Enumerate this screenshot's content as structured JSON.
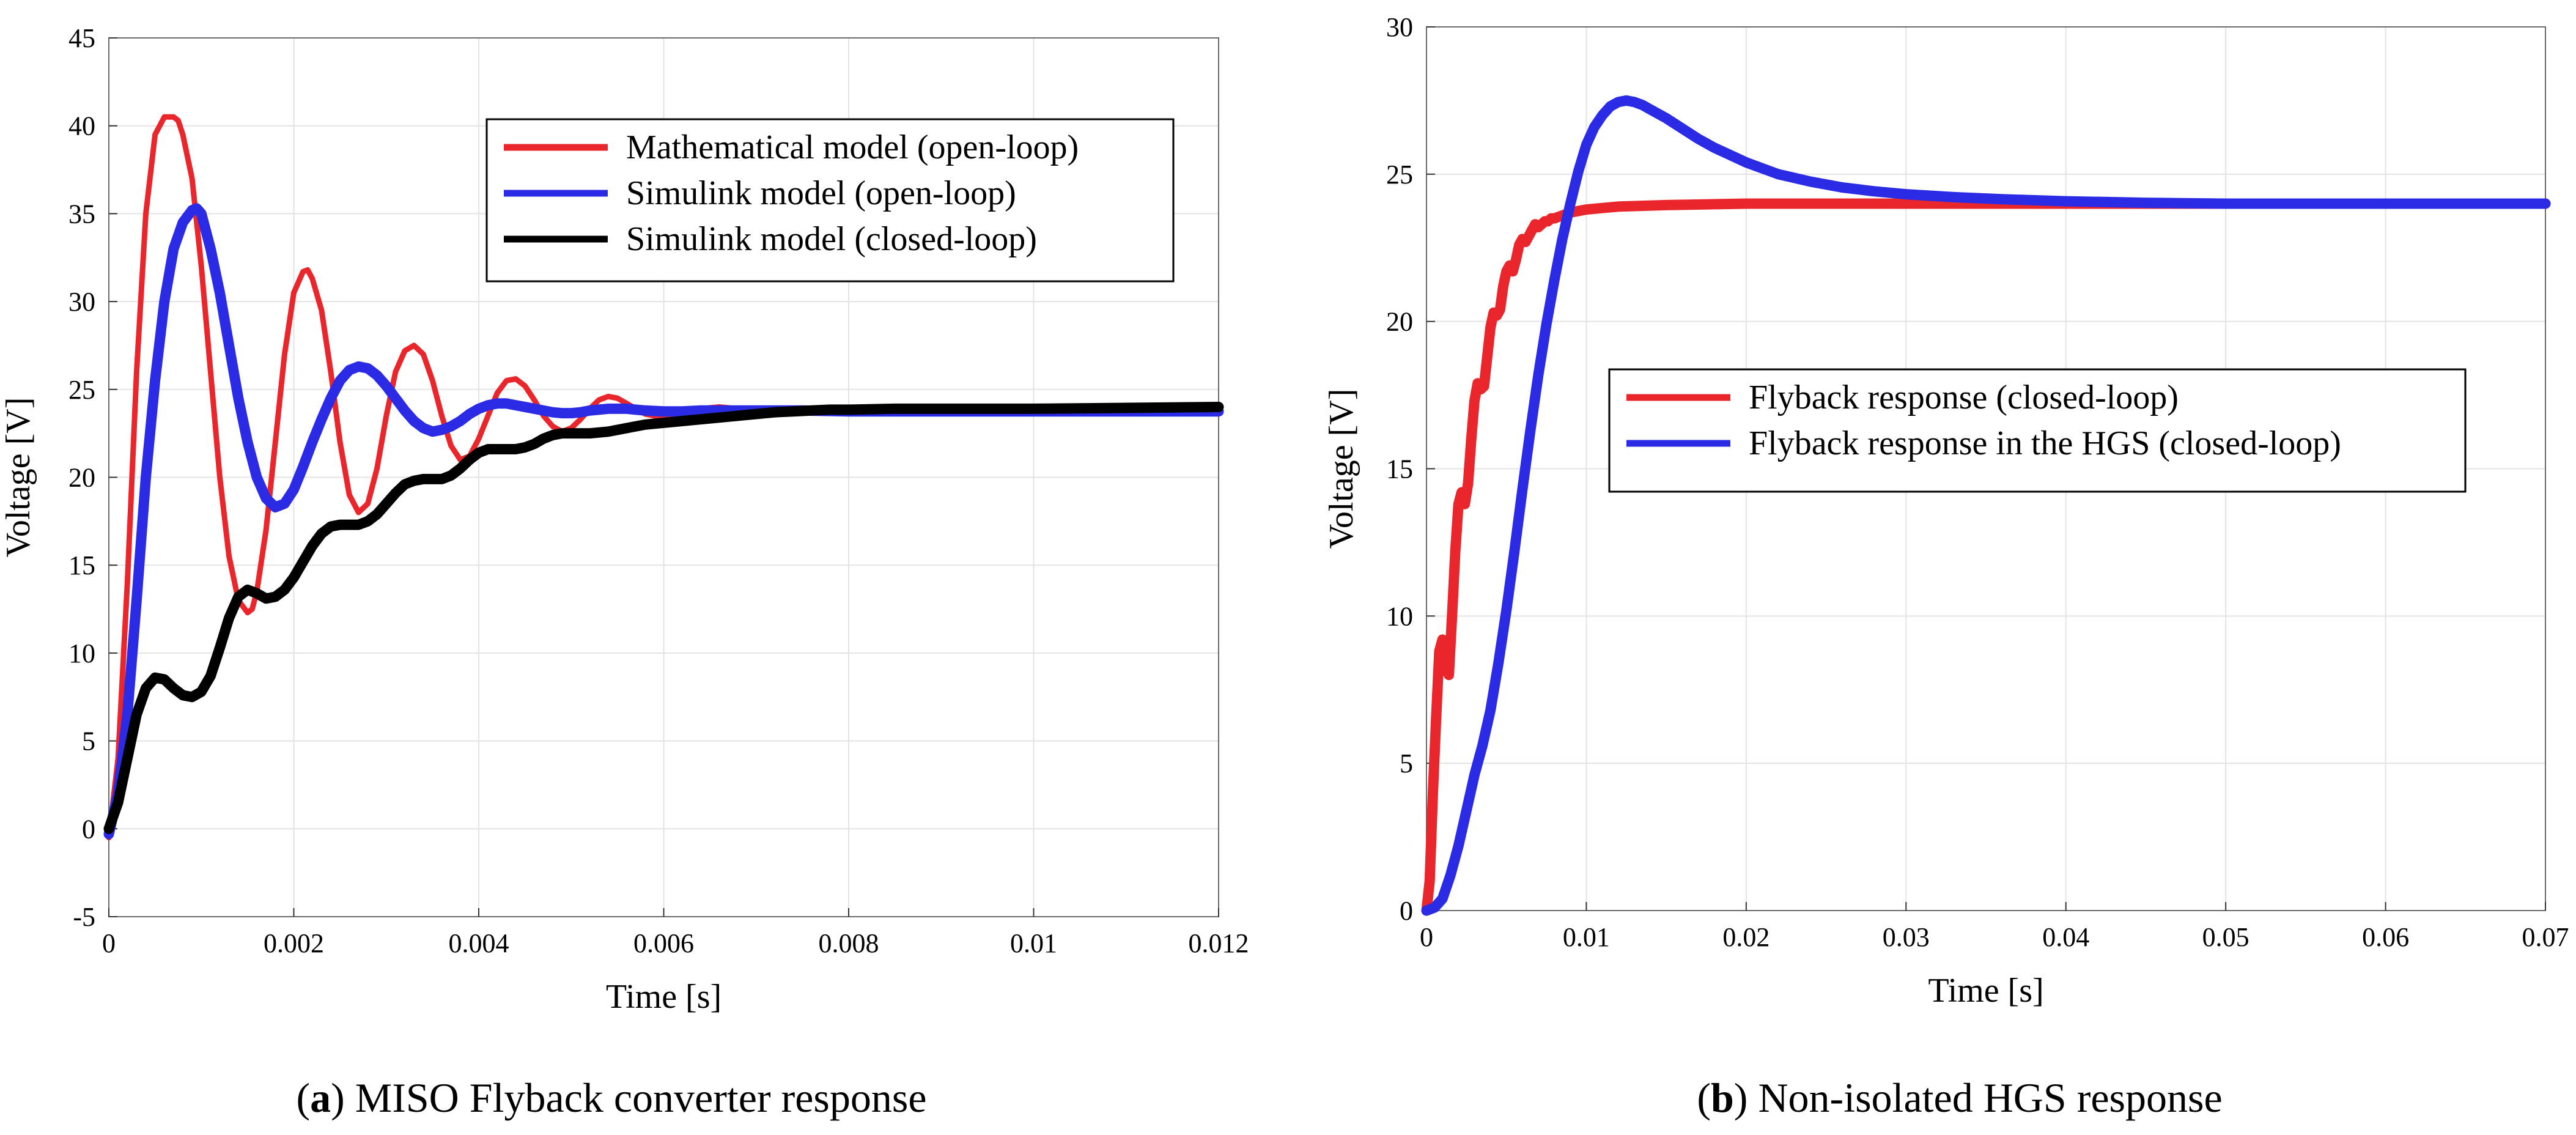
{
  "chart_data": [
    {
      "id": "a",
      "type": "line",
      "caption_prefix": "(",
      "caption_letter": "a",
      "caption_rest": ") MISO Flyback converter response",
      "xlabel": "Time [s]",
      "ylabel": "Voltage [V]",
      "xlim": [
        0,
        0.012
      ],
      "ylim": [
        -5,
        45
      ],
      "xticks": [
        0,
        0.002,
        0.004,
        0.006,
        0.008,
        0.01,
        0.012
      ],
      "xtick_labels": [
        "0",
        "0.002",
        "0.004",
        "0.006",
        "0.008",
        "0.01",
        "0.012"
      ],
      "yticks": [
        -5,
        0,
        5,
        10,
        15,
        20,
        25,
        30,
        35,
        40,
        45
      ],
      "ytick_labels": [
        "-5",
        "0",
        "5",
        "10",
        "15",
        "20",
        "25",
        "30",
        "35",
        "40",
        "45"
      ],
      "grid": true,
      "legend_position": "top-right",
      "series": [
        {
          "name": "Mathematical model (open-loop)",
          "color": "#e8262b",
          "weight": "normal",
          "x": [
            0,
            0.0001,
            0.0002,
            0.0003,
            0.0004,
            0.0005,
            0.0006,
            0.0007,
            0.00075,
            0.0008,
            0.0009,
            0.001,
            0.0011,
            0.0012,
            0.0013,
            0.0014,
            0.0015,
            0.00155,
            0.0016,
            0.0017,
            0.0018,
            0.0019,
            0.002,
            0.0021,
            0.00215,
            0.0022,
            0.0023,
            0.0024,
            0.0025,
            0.0026,
            0.0027,
            0.0028,
            0.0029,
            0.003,
            0.0031,
            0.0032,
            0.0033,
            0.0034,
            0.0035,
            0.0036,
            0.0037,
            0.0038,
            0.0039,
            0.004,
            0.0041,
            0.0042,
            0.0043,
            0.0044,
            0.0045,
            0.0046,
            0.0047,
            0.0048,
            0.0049,
            0.005,
            0.0051,
            0.0052,
            0.0053,
            0.0054,
            0.0055,
            0.0056,
            0.0057,
            0.0058,
            0.0059,
            0.006,
            0.0062,
            0.0064,
            0.0066,
            0.0068,
            0.007,
            0.0072,
            0.0074,
            0.0076,
            0.0078,
            0.008,
            0.0085,
            0.009,
            0.01,
            0.011,
            0.012
          ],
          "y": [
            -0.5,
            4,
            14,
            26,
            35,
            39.5,
            40.5,
            40.5,
            40.3,
            39.5,
            37,
            32,
            26,
            20,
            15.5,
            13,
            12.3,
            12.5,
            13.5,
            17,
            22,
            27,
            30.5,
            31.7,
            31.8,
            31.3,
            29.5,
            26,
            22,
            19,
            18,
            18.5,
            20.5,
            23.5,
            26,
            27.2,
            27.5,
            27,
            25.5,
            23.5,
            21.8,
            21,
            21.2,
            22.2,
            23.5,
            24.8,
            25.5,
            25.6,
            25.2,
            24.4,
            23.5,
            22.9,
            22.6,
            22.8,
            23.3,
            23.9,
            24.4,
            24.6,
            24.5,
            24.2,
            23.9,
            23.6,
            23.5,
            23.5,
            23.7,
            23.9,
            24,
            23.9,
            23.8,
            23.8,
            23.85,
            23.9,
            23.9,
            23.85,
            23.85,
            23.85,
            23.85,
            23.85,
            23.85
          ]
        },
        {
          "name": "Simulink model (open-loop)",
          "color": "#2b2be6",
          "weight": "bold",
          "x": [
            0,
            0.0001,
            0.0002,
            0.0003,
            0.0004,
            0.0005,
            0.0006,
            0.0007,
            0.0008,
            0.0009,
            0.00095,
            0.001,
            0.0011,
            0.0012,
            0.0013,
            0.0014,
            0.0015,
            0.0016,
            0.0017,
            0.0018,
            0.0019,
            0.002,
            0.0021,
            0.0022,
            0.0023,
            0.0024,
            0.0025,
            0.0026,
            0.0027,
            0.0028,
            0.0029,
            0.003,
            0.0031,
            0.0032,
            0.0033,
            0.0034,
            0.0035,
            0.0036,
            0.0037,
            0.0038,
            0.0039,
            0.004,
            0.0041,
            0.0042,
            0.0043,
            0.0044,
            0.0045,
            0.0046,
            0.0047,
            0.0048,
            0.0049,
            0.005,
            0.0051,
            0.0052,
            0.0053,
            0.0054,
            0.0055,
            0.0056,
            0.0057,
            0.0058,
            0.006,
            0.0062,
            0.0064,
            0.0066,
            0.0068,
            0.007,
            0.0075,
            0.008,
            0.009,
            0.01,
            0.011,
            0.012
          ],
          "y": [
            -0.3,
            2,
            6.5,
            13,
            20,
            25.5,
            30,
            33,
            34.5,
            35.2,
            35.3,
            35,
            33,
            30.5,
            27.5,
            24.5,
            22,
            20,
            18.8,
            18.3,
            18.5,
            19.3,
            20.6,
            22,
            23.3,
            24.5,
            25.5,
            26.1,
            26.3,
            26.2,
            25.8,
            25.2,
            24.5,
            23.8,
            23.2,
            22.8,
            22.6,
            22.7,
            22.9,
            23.2,
            23.6,
            23.9,
            24.1,
            24.2,
            24.2,
            24.1,
            24,
            23.9,
            23.8,
            23.7,
            23.65,
            23.65,
            23.7,
            23.8,
            23.85,
            23.9,
            23.9,
            23.9,
            23.85,
            23.8,
            23.75,
            23.75,
            23.8,
            23.8,
            23.8,
            23.8,
            23.8,
            23.75,
            23.75,
            23.75,
            23.75,
            23.75
          ]
        },
        {
          "name": "Simulink model (closed-loop)",
          "color": "#000000",
          "weight": "bold",
          "x": [
            0,
            0.0001,
            0.0002,
            0.0003,
            0.0004,
            0.0005,
            0.0006,
            0.0007,
            0.0008,
            0.0009,
            0.001,
            0.0011,
            0.0012,
            0.0013,
            0.0014,
            0.0015,
            0.0016,
            0.0017,
            0.0018,
            0.0019,
            0.002,
            0.0021,
            0.0022,
            0.0023,
            0.0024,
            0.0025,
            0.0026,
            0.0027,
            0.0028,
            0.0029,
            0.003,
            0.0031,
            0.0032,
            0.0033,
            0.0034,
            0.0035,
            0.0036,
            0.0037,
            0.0038,
            0.0039,
            0.004,
            0.0041,
            0.0042,
            0.0043,
            0.0044,
            0.0045,
            0.0046,
            0.0047,
            0.0048,
            0.0049,
            0.005,
            0.0052,
            0.0054,
            0.0056,
            0.0058,
            0.006,
            0.0062,
            0.0064,
            0.0066,
            0.0068,
            0.007,
            0.0072,
            0.0074,
            0.0076,
            0.0078,
            0.008,
            0.0085,
            0.009,
            0.0095,
            0.01,
            0.011,
            0.012
          ],
          "y": [
            0,
            1.5,
            4,
            6.5,
            8,
            8.6,
            8.5,
            8,
            7.6,
            7.5,
            7.8,
            8.7,
            10.3,
            12,
            13.2,
            13.6,
            13.4,
            13.1,
            13.2,
            13.6,
            14.3,
            15.2,
            16.1,
            16.8,
            17.2,
            17.3,
            17.3,
            17.3,
            17.5,
            17.9,
            18.5,
            19.1,
            19.6,
            19.8,
            19.9,
            19.9,
            19.9,
            20.1,
            20.5,
            21,
            21.4,
            21.6,
            21.6,
            21.6,
            21.6,
            21.7,
            21.9,
            22.2,
            22.4,
            22.5,
            22.5,
            22.5,
            22.6,
            22.8,
            23,
            23.1,
            23.2,
            23.3,
            23.4,
            23.5,
            23.6,
            23.7,
            23.75,
            23.8,
            23.85,
            23.85,
            23.9,
            23.9,
            23.9,
            23.9,
            23.95,
            24
          ]
        }
      ]
    },
    {
      "id": "b",
      "type": "line",
      "caption_prefix": "(",
      "caption_letter": "b",
      "caption_rest": ") Non-isolated HGS response",
      "xlabel": "Time [s]",
      "ylabel": "Voltage [V]",
      "xlim": [
        0,
        0.07
      ],
      "ylim": [
        0,
        30
      ],
      "xticks": [
        0,
        0.01,
        0.02,
        0.03,
        0.04,
        0.05,
        0.06,
        0.07
      ],
      "xtick_labels": [
        "0",
        "0.01",
        "0.02",
        "0.03",
        "0.04",
        "0.05",
        "0.06",
        "0.07"
      ],
      "yticks": [
        0,
        5,
        10,
        15,
        20,
        25,
        30
      ],
      "ytick_labels": [
        "0",
        "5",
        "10",
        "15",
        "20",
        "25",
        "30"
      ],
      "grid": true,
      "legend_position": "center",
      "series": [
        {
          "name": "Flyback response (closed-loop)",
          "color": "#e8262b",
          "weight": "bold",
          "x": [
            0,
            0.0002,
            0.0004,
            0.0006,
            0.0008,
            0.001,
            0.0012,
            0.0014,
            0.0016,
            0.0018,
            0.002,
            0.0022,
            0.0024,
            0.0026,
            0.0028,
            0.003,
            0.0032,
            0.0034,
            0.0036,
            0.0038,
            0.004,
            0.0042,
            0.0044,
            0.0046,
            0.0048,
            0.005,
            0.0052,
            0.0054,
            0.0056,
            0.0058,
            0.006,
            0.0062,
            0.0064,
            0.0066,
            0.0068,
            0.007,
            0.0072,
            0.0074,
            0.0076,
            0.0078,
            0.008,
            0.0085,
            0.009,
            0.0095,
            0.01,
            0.011,
            0.012,
            0.015,
            0.02,
            0.03,
            0.04,
            0.05,
            0.06,
            0.07
          ],
          "y": [
            0,
            1,
            4,
            6.5,
            8.8,
            9.2,
            8.2,
            8,
            10,
            12.2,
            13.8,
            14.2,
            13.8,
            14.5,
            16,
            17.3,
            17.9,
            17.7,
            17.8,
            18.8,
            19.8,
            20.3,
            20.2,
            20.4,
            21.2,
            21.7,
            21.9,
            21.7,
            22.1,
            22.6,
            22.8,
            22.7,
            22.9,
            23.1,
            23.3,
            23.2,
            23.3,
            23.4,
            23.4,
            23.5,
            23.5,
            23.6,
            23.7,
            23.75,
            23.8,
            23.85,
            23.9,
            23.95,
            24,
            24,
            24,
            24,
            24,
            24
          ]
        },
        {
          "name": "Flyback response in the HGS (closed-loop)",
          "color": "#2b2be6",
          "weight": "bold",
          "x": [
            0,
            0.0005,
            0.001,
            0.0015,
            0.002,
            0.0025,
            0.003,
            0.0035,
            0.004,
            0.0045,
            0.005,
            0.0055,
            0.006,
            0.0065,
            0.007,
            0.0075,
            0.008,
            0.0085,
            0.009,
            0.0095,
            0.01,
            0.0105,
            0.011,
            0.0115,
            0.012,
            0.0125,
            0.013,
            0.0135,
            0.014,
            0.015,
            0.016,
            0.017,
            0.018,
            0.019,
            0.02,
            0.022,
            0.024,
            0.026,
            0.028,
            0.03,
            0.033,
            0.036,
            0.04,
            0.045,
            0.05,
            0.055,
            0.06,
            0.065,
            0.07
          ],
          "y": [
            0,
            0.1,
            0.4,
            1.2,
            2.2,
            3.4,
            4.6,
            5.6,
            6.8,
            8.4,
            10.2,
            12.2,
            14.3,
            16.3,
            18.2,
            19.9,
            21.4,
            22.8,
            24,
            25.1,
            26,
            26.6,
            27,
            27.3,
            27.45,
            27.5,
            27.45,
            27.35,
            27.2,
            26.9,
            26.55,
            26.2,
            25.9,
            25.65,
            25.4,
            25,
            24.75,
            24.55,
            24.42,
            24.32,
            24.22,
            24.15,
            24.08,
            24.03,
            24,
            24,
            24,
            24,
            24
          ]
        }
      ]
    }
  ]
}
